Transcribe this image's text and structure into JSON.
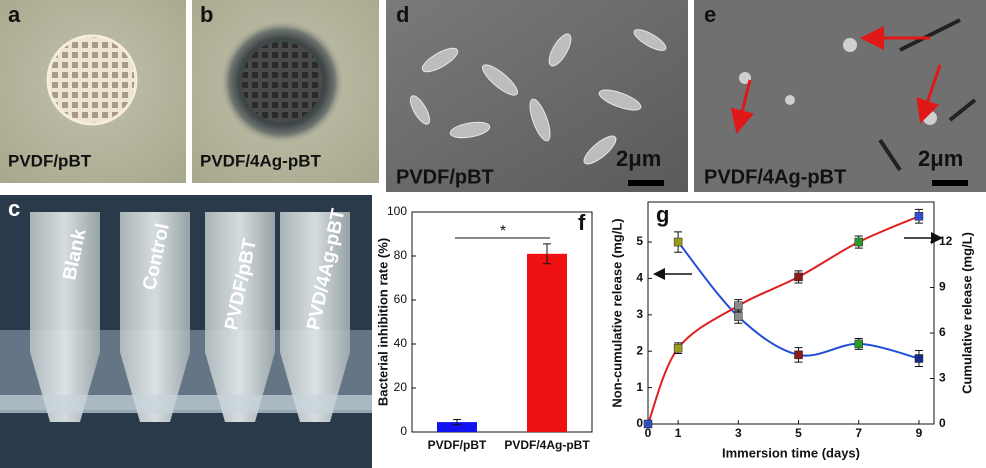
{
  "panels": {
    "a": {
      "label": "a",
      "caption": "PVDF/pBT"
    },
    "b": {
      "label": "b",
      "caption": "PVDF/4Ag-pBT"
    },
    "d": {
      "label": "d",
      "caption": "PVDF/pBT",
      "scale": "2μm"
    },
    "e": {
      "label": "e",
      "caption": "PVDF/4Ag-pBT",
      "scale": "2μm"
    },
    "c": {
      "label": "c",
      "tubes": [
        "Blank",
        "Control",
        "PVDF/pBT",
        "PVD/4Ag-pBT"
      ]
    }
  },
  "chart_data": [
    {
      "type": "bar",
      "label": "f",
      "ylabel": "Bacterial inhibition rate (%)",
      "categories": [
        "PVDF/pBT",
        "PVDF/4Ag-pBT"
      ],
      "values": [
        4.5,
        81
      ],
      "errors": [
        1.2,
        4.5
      ],
      "colors": [
        "#1212f0",
        "#f01212"
      ],
      "annotation": "*",
      "ylim": [
        0,
        100
      ],
      "yticks": [
        0,
        20,
        40,
        60,
        80,
        100
      ]
    },
    {
      "type": "line",
      "label": "g",
      "xlabel": "Immersion time (days)",
      "ylabel": "Non-cumulative release (mg/L)",
      "y2label": "Cumulative release (mg/L)",
      "x": [
        0,
        1,
        3,
        5,
        7,
        9
      ],
      "series": [
        {
          "color": "#1f4fd8",
          "values": [
            null,
            5.0,
            2.95,
            1.9,
            2.2,
            1.8
          ],
          "errors": [
            null,
            0.28,
            0.18,
            0.2,
            0.15,
            0.22
          ],
          "marker_colors": [
            null,
            "#9a9a20",
            "#8a8a8a",
            "#8b1a1a",
            "#2e9a2e",
            "#1a2a8a"
          ]
        },
        {
          "color": "#e02020",
          "axis": "y2",
          "values": [
            0,
            5.0,
            7.8,
            9.7,
            12.0,
            13.7
          ],
          "errors": [
            null,
            0.35,
            0.4,
            0.4,
            0.4,
            0.45
          ],
          "marker_colors": [
            "#3050c0",
            "#9a9a20",
            "#8a8a8a",
            "#8b1a1a",
            "#2e9a2e",
            "#3050d0"
          ]
        }
      ],
      "xlim": [
        0,
        9.5
      ],
      "xticks": [
        0,
        1,
        3,
        5,
        7,
        9
      ],
      "ylim": [
        0,
        6.1
      ],
      "yticks": [
        0,
        1,
        2,
        3,
        4,
        5
      ],
      "y2lim": [
        0,
        14.64
      ],
      "y2ticks": [
        0,
        3,
        6,
        9,
        12
      ]
    }
  ]
}
